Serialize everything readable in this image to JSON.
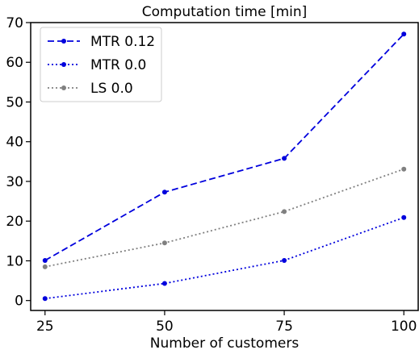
{
  "chart_data": {
    "type": "line",
    "title": "Computation time [min]",
    "xlabel": "Number of customers",
    "ylabel": "",
    "x": [
      25,
      50,
      75,
      100
    ],
    "xticks": [
      "25",
      "50",
      "75",
      "100"
    ],
    "yticks": [
      "0",
      "10",
      "20",
      "30",
      "40",
      "50",
      "60",
      "70"
    ],
    "ylim": [
      -2.5,
      70
    ],
    "xlim": [
      22,
      103
    ],
    "grid": false,
    "legend_position": "top-left",
    "series": [
      {
        "name": "MTR 0.12",
        "values": [
          10.1,
          27.3,
          35.8,
          67.1
        ],
        "color": "#0000dd",
        "style": "dashed"
      },
      {
        "name": "MTR 0.0",
        "values": [
          0.5,
          4.3,
          10.1,
          20.9
        ],
        "color": "#0000dd",
        "style": "dotted"
      },
      {
        "name": "LS 0.0",
        "values": [
          8.5,
          14.5,
          22.4,
          33.1
        ],
        "color": "#808080",
        "style": "dotted"
      }
    ]
  }
}
